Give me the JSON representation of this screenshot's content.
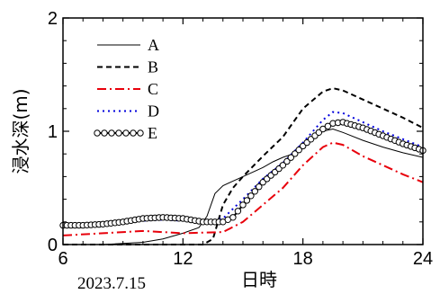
{
  "chart_data": {
    "type": "line",
    "xlabel": "日時",
    "ylabel": "浸水深(m)",
    "date_note": "2023.7.15",
    "xlim": [
      6,
      24
    ],
    "ylim": [
      0,
      2
    ],
    "x_ticks": [
      "6",
      "12",
      "18",
      "24"
    ],
    "y_ticks": [
      "0",
      "1",
      "2"
    ],
    "grid": false,
    "legend_position": "top-left",
    "series": [
      {
        "name": "A",
        "color": "#000000",
        "style": "solid",
        "x": [
          6,
          8,
          10,
          11,
          12,
          12.8,
          13.2,
          13.6,
          14,
          14.5,
          15,
          16,
          16.5,
          17,
          17.5,
          18,
          18.5,
          19,
          19.5,
          20,
          21,
          22,
          23,
          24
        ],
        "y": [
          0,
          0,
          0.02,
          0.05,
          0.1,
          0.15,
          0.25,
          0.45,
          0.52,
          0.56,
          0.6,
          0.68,
          0.73,
          0.77,
          0.8,
          0.85,
          0.93,
          1.0,
          1.02,
          0.99,
          0.92,
          0.86,
          0.81,
          0.77
        ]
      },
      {
        "name": "B",
        "color": "#000000",
        "style": "dashed",
        "x": [
          6,
          12,
          13,
          13.5,
          14,
          14.5,
          15,
          16,
          17,
          18,
          19,
          19.5,
          20,
          21,
          22,
          23,
          24
        ],
        "y": [
          0,
          0,
          0,
          0.05,
          0.35,
          0.5,
          0.6,
          0.78,
          0.95,
          1.2,
          1.35,
          1.38,
          1.36,
          1.28,
          1.2,
          1.12,
          1.03
        ]
      },
      {
        "name": "C",
        "color": "#e8000b",
        "style": "dashdot",
        "x": [
          6,
          8,
          10,
          12,
          14,
          15,
          16,
          17,
          18,
          19,
          19.5,
          20,
          21,
          22,
          23,
          24
        ],
        "y": [
          0.08,
          0.1,
          0.12,
          0.1,
          0.11,
          0.2,
          0.35,
          0.5,
          0.7,
          0.86,
          0.9,
          0.88,
          0.78,
          0.7,
          0.62,
          0.55
        ]
      },
      {
        "name": "D",
        "color": "#0000dd",
        "style": "dotted",
        "x": [
          6,
          8,
          10,
          11,
          12,
          13,
          14,
          15,
          16,
          17,
          18,
          19,
          19.5,
          20,
          21,
          22,
          23,
          24
        ],
        "y": [
          0.18,
          0.19,
          0.21,
          0.22,
          0.21,
          0.2,
          0.23,
          0.4,
          0.58,
          0.72,
          0.9,
          1.1,
          1.17,
          1.16,
          1.08,
          1.0,
          0.93,
          0.86
        ]
      },
      {
        "name": "E",
        "color": "#000000",
        "style": "circles",
        "x": [
          6,
          7,
          8,
          9,
          10,
          11,
          12,
          13,
          14,
          14.5,
          15,
          16,
          17,
          18,
          19,
          19.5,
          20,
          21,
          22,
          23,
          24
        ],
        "y": [
          0.17,
          0.17,
          0.18,
          0.2,
          0.23,
          0.24,
          0.23,
          0.2,
          0.2,
          0.24,
          0.35,
          0.55,
          0.7,
          0.87,
          1.02,
          1.07,
          1.08,
          1.03,
          0.96,
          0.89,
          0.83
        ]
      }
    ]
  }
}
